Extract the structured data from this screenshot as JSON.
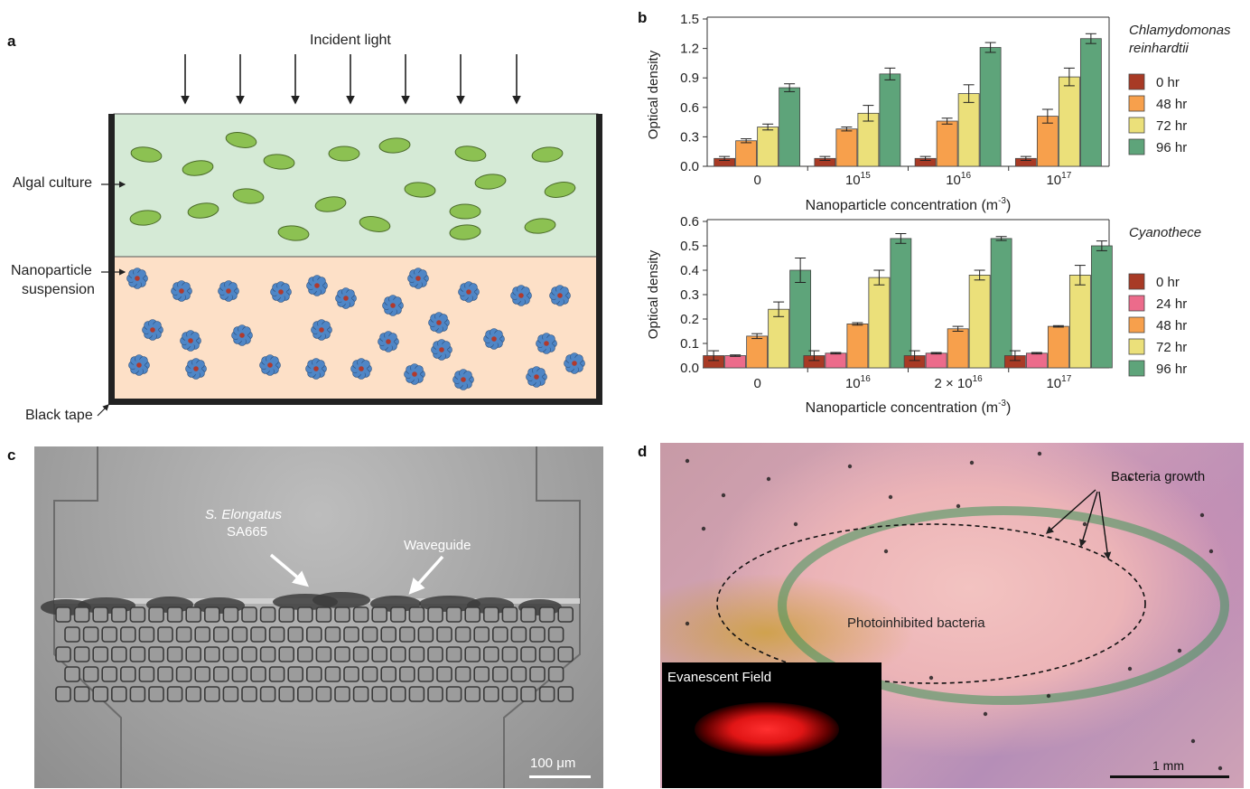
{
  "panels": {
    "a": {
      "letter": "a",
      "incident_light": "Incident light",
      "algal_culture": "Algal culture",
      "nanoparticle_line1": "Nanoparticle",
      "nanoparticle_line2": "suspension",
      "black_tape": "Black tape",
      "colors": {
        "culture": "#d5ead6",
        "suspension": "#fde0c7",
        "cell": "#8cc152",
        "particle": "#4f86c6",
        "particle_core": "#b03a2e",
        "tape": "#222222"
      }
    },
    "b": {
      "letter": "b",
      "x_label": "Nanoparticle concentration (m",
      "x_label_sup": "-3",
      "x_label_close": ")",
      "ylabel": "Optical density",
      "top_species_line1": "Chlamydomonas",
      "top_species_line2": "reinhardtii",
      "bottom_species": "Cyanothece",
      "top_ticks": [
        "0.0",
        "0.3",
        "0.6",
        "0.9",
        "1.2",
        "1.5"
      ],
      "bottom_ticks": [
        "0.0",
        "0.1",
        "0.2",
        "0.3",
        "0.4",
        "0.5",
        "0.6"
      ],
      "top_cats": [
        {
          "base": "0",
          "sup": ""
        },
        {
          "base": "10",
          "sup": "15"
        },
        {
          "base": "10",
          "sup": "16"
        },
        {
          "base": "10",
          "sup": "17"
        }
      ],
      "bottom_cats": [
        {
          "base": "0",
          "sup": ""
        },
        {
          "base": "10",
          "sup": "16"
        },
        {
          "base": "2 × 10",
          "sup": "16"
        },
        {
          "base": "10",
          "sup": "17"
        }
      ]
    },
    "c": {
      "letter": "c",
      "species_italic": "S. Elongatus",
      "strain": "SA665",
      "waveguide": "Waveguide",
      "scale": "100 μm"
    },
    "d": {
      "letter": "d",
      "bacteria_growth": "Bacteria growth",
      "photoinhibited": "Photoinhibited bacteria",
      "evanescent": "Evanescent Field",
      "scale": "1 mm"
    }
  },
  "chart_data": [
    {
      "type": "bar",
      "title": "Chlamydomonas reinhardtii",
      "xlabel": "Nanoparticle concentration (m-3)",
      "ylabel": "Optical density",
      "ylim": [
        0,
        1.5
      ],
      "categories": [
        "0",
        "10^15",
        "10^16",
        "10^17"
      ],
      "series": [
        {
          "name": "0 hr",
          "color": "#a83a25",
          "values": [
            0.08,
            0.08,
            0.08,
            0.08
          ],
          "errors": [
            0.02,
            0.02,
            0.02,
            0.02
          ]
        },
        {
          "name": "48 hr",
          "color": "#f7a04c",
          "values": [
            0.26,
            0.38,
            0.46,
            0.51
          ],
          "errors": [
            0.02,
            0.02,
            0.03,
            0.07
          ]
        },
        {
          "name": "72 hr",
          "color": "#ebe07a",
          "values": [
            0.4,
            0.54,
            0.74,
            0.91
          ],
          "errors": [
            0.03,
            0.08,
            0.09,
            0.09
          ]
        },
        {
          "name": "96 hr",
          "color": "#5ea47a",
          "values": [
            0.8,
            0.94,
            1.21,
            1.3
          ],
          "errors": [
            0.04,
            0.06,
            0.05,
            0.05
          ]
        }
      ],
      "grid": false,
      "legend": "right"
    },
    {
      "type": "bar",
      "title": "Cyanothece",
      "xlabel": "Nanoparticle concentration (m-3)",
      "ylabel": "Optical density",
      "ylim": [
        0,
        0.6
      ],
      "categories": [
        "0",
        "10^16",
        "2 × 10^16",
        "10^17"
      ],
      "series": [
        {
          "name": "0 hr",
          "color": "#a83a25",
          "values": [
            0.05,
            0.05,
            0.05,
            0.05
          ],
          "errors": [
            0.02,
            0.02,
            0.02,
            0.02
          ]
        },
        {
          "name": "24 hr",
          "color": "#ec6b8b",
          "values": [
            0.05,
            0.06,
            0.06,
            0.06
          ],
          "errors": [
            0.003,
            0.003,
            0.003,
            0.003
          ]
        },
        {
          "name": "48 hr",
          "color": "#f7a04c",
          "values": [
            0.13,
            0.18,
            0.16,
            0.17
          ],
          "errors": [
            0.01,
            0.005,
            0.01,
            0.003
          ]
        },
        {
          "name": "72 hr",
          "color": "#ebe07a",
          "values": [
            0.24,
            0.37,
            0.38,
            0.38
          ],
          "errors": [
            0.03,
            0.03,
            0.02,
            0.04
          ]
        },
        {
          "name": "96 hr",
          "color": "#5ea47a",
          "values": [
            0.4,
            0.53,
            0.53,
            0.5
          ],
          "errors": [
            0.05,
            0.02,
            0.008,
            0.02
          ]
        }
      ],
      "grid": false,
      "legend": "right"
    }
  ]
}
